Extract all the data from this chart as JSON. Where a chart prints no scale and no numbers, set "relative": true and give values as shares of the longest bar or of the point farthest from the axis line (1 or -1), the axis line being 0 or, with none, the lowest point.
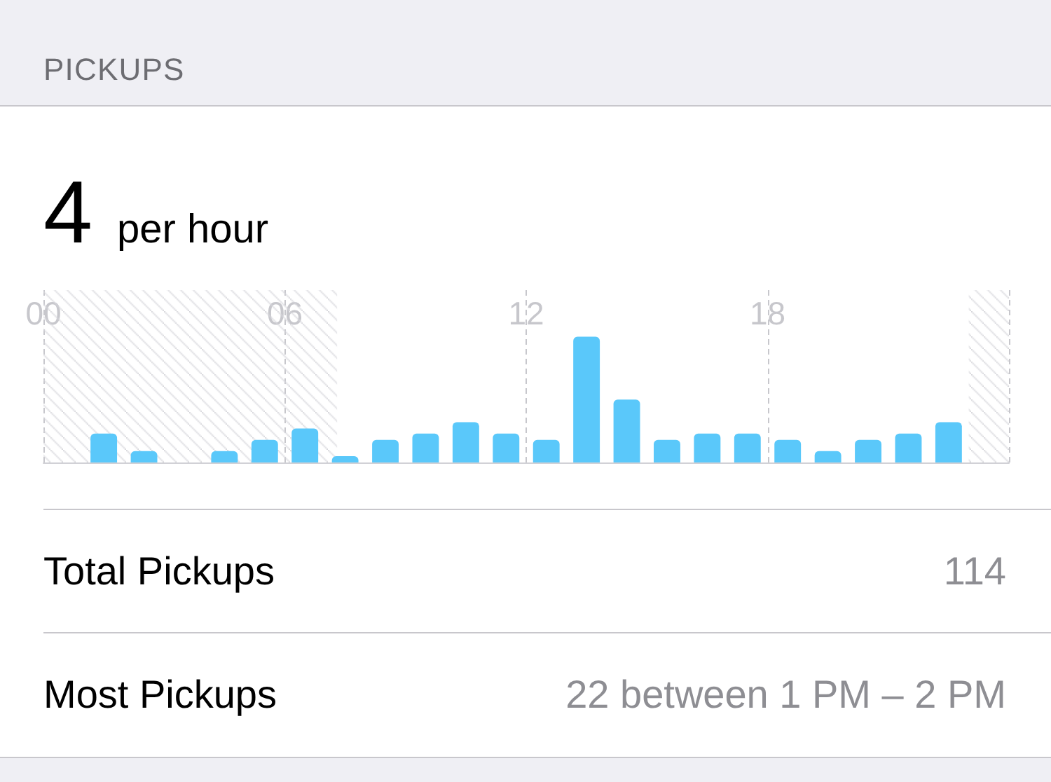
{
  "chart_data": {
    "type": "bar",
    "title": "PICKUPS",
    "subtitle": "4 per hour",
    "x": [
      0.5,
      1.5,
      2.5,
      3.5,
      4.5,
      5.5,
      6.5,
      7.5,
      8.5,
      9.5,
      10.5,
      11.5,
      12.5,
      13.5,
      14.5,
      15.5,
      16.5,
      17.5,
      18.5,
      19.5,
      20.5,
      21.5,
      22.5,
      23.5
    ],
    "values": [
      0,
      0.23,
      0.09,
      0,
      0.09,
      0.18,
      0.27,
      0.05,
      0.18,
      0.23,
      0.32,
      0.23,
      0.18,
      1,
      0.5,
      0.18,
      0.23,
      0.23,
      0.18,
      0.09,
      0.18,
      0.23,
      0.32,
      0
    ],
    "relative": true,
    "color": "#5ac8fa",
    "xlim": [
      0,
      24
    ],
    "xticks": [
      {
        "value": 0,
        "label": "00"
      },
      {
        "value": 6,
        "label": "06"
      },
      {
        "value": 12,
        "label": "12"
      },
      {
        "value": 18,
        "label": "18"
      },
      {
        "value": 24,
        "label": null
      }
    ],
    "grid": "x",
    "bands": [
      {
        "axis": "x",
        "from": 0,
        "to": 7.3,
        "color": "#d6d6db"
      },
      {
        "axis": "x",
        "from": 23,
        "to": 24,
        "color": "#d6d6db"
      }
    ],
    "annotations": [
      "Total Pickups",
      "114",
      "Most Pickups",
      "22 between 1 PM – 2 PM"
    ]
  }
}
